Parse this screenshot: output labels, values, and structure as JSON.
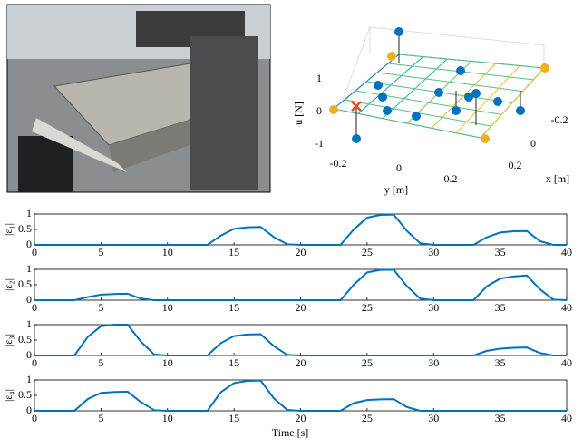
{
  "chart_data": [
    {
      "type": "scatter3d",
      "xlabel": "x [m]",
      "ylabel": "y [m]",
      "zlabel": "u [N]",
      "xticks": [
        -0.2,
        0,
        0.2
      ],
      "yticks": [
        -0.2,
        0,
        0.2
      ],
      "zticks": [
        1,
        0,
        -1
      ]
    },
    {
      "type": "line",
      "xlabel": "Time [s]",
      "xlim": [
        0,
        40
      ],
      "xticks": [
        0,
        5,
        10,
        15,
        20,
        25,
        30,
        35,
        40
      ],
      "ylim": [
        0,
        1
      ],
      "yticks": [
        0,
        0.5,
        1
      ],
      "x": [
        0,
        1,
        2,
        3,
        4,
        5,
        6,
        7,
        8,
        9,
        10,
        11,
        12,
        13,
        14,
        15,
        16,
        17,
        18,
        19,
        20,
        21,
        22,
        23,
        24,
        25,
        26,
        27,
        28,
        29,
        30,
        31,
        32,
        33,
        34,
        35,
        36,
        37,
        38,
        39,
        40
      ],
      "series": [
        {
          "name": "|ε₁|",
          "color": "#0072bd",
          "values": [
            0,
            0,
            0,
            0,
            0,
            0,
            0,
            0,
            0,
            0,
            0,
            0,
            0,
            0,
            0.3,
            0.52,
            0.57,
            0.58,
            0.25,
            0.02,
            0,
            0,
            0,
            0,
            0.5,
            0.88,
            0.97,
            0.98,
            0.45,
            0.05,
            0,
            0,
            0,
            0,
            0.25,
            0.4,
            0.44,
            0.45,
            0.12,
            0,
            0
          ]
        },
        {
          "name": "|ε₂|",
          "color": "#0072bd",
          "values": [
            0,
            0,
            0,
            0,
            0.1,
            0.18,
            0.2,
            0.21,
            0.05,
            0,
            0,
            0,
            0,
            0,
            0,
            0,
            0,
            0,
            0,
            0,
            0,
            0,
            0,
            0,
            0.5,
            0.9,
            0.98,
            0.99,
            0.45,
            0.05,
            0,
            0,
            0,
            0,
            0.45,
            0.7,
            0.77,
            0.8,
            0.35,
            0.02,
            0
          ]
        },
        {
          "name": "|ε₃|",
          "color": "#0072bd",
          "values": [
            0,
            0,
            0,
            0,
            0.6,
            0.95,
            1,
            1,
            0.45,
            0.03,
            0,
            0,
            0,
            0,
            0.4,
            0.63,
            0.68,
            0.69,
            0.3,
            0.02,
            0,
            0,
            0,
            0,
            0,
            0,
            0,
            0,
            0,
            0,
            0,
            0,
            0,
            0,
            0.15,
            0.22,
            0.25,
            0.26,
            0.08,
            0,
            0
          ]
        },
        {
          "name": "|ε₄|",
          "color": "#0072bd",
          "values": [
            0,
            0,
            0,
            0,
            0.38,
            0.58,
            0.61,
            0.62,
            0.28,
            0.02,
            0,
            0,
            0,
            0,
            0.6,
            0.9,
            0.97,
            0.98,
            0.4,
            0.03,
            0,
            0,
            0,
            0,
            0.25,
            0.35,
            0.37,
            0.38,
            0.12,
            0,
            0,
            0,
            0,
            0,
            0,
            0,
            0,
            0,
            0,
            0,
            0
          ]
        }
      ]
    }
  ]
}
